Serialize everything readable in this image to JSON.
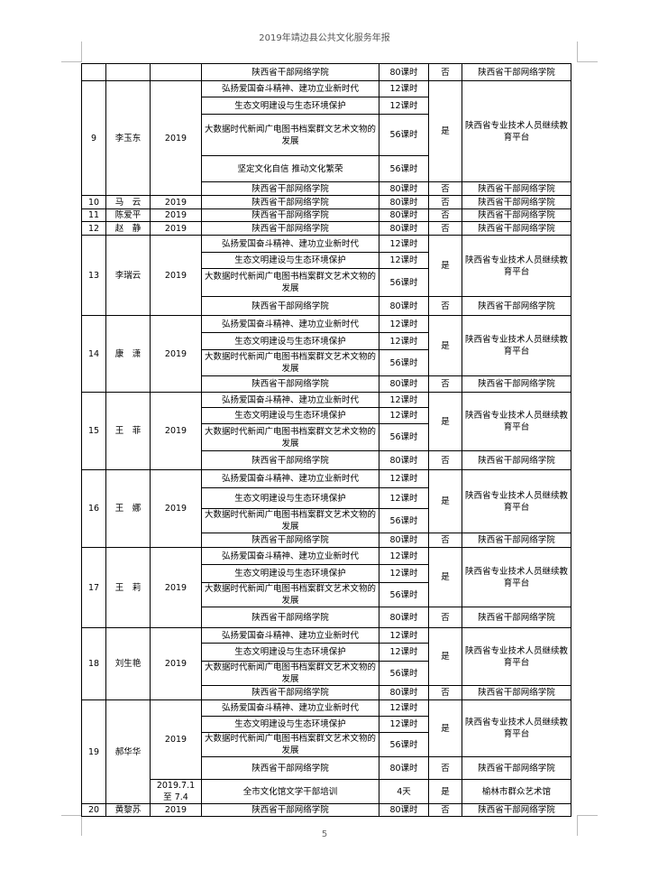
{
  "header": {
    "title": "2019年靖边县公共文化服务年报"
  },
  "footer": {
    "page_number": "5"
  },
  "table": {
    "persons": [
      {
        "no": "",
        "name": "",
        "years": [
          {
            "year": "",
            "span": 1
          }
        ],
        "rows": [
          {
            "course": "陕西省干部网络学院",
            "hours": "80课时"
          }
        ],
        "blocks": [
          {
            "required": "否",
            "platform": "陕西省干部网络学院",
            "span": 1
          }
        ]
      },
      {
        "no": "9",
        "name": "李玉东",
        "years": [
          {
            "year": "2019",
            "span": 5
          }
        ],
        "rows": [
          {
            "course": "弘扬爱国奋斗精神、建功立业新时代",
            "hours": "12课时"
          },
          {
            "course": "生态文明建设与生态环境保护",
            "hours": "12课时"
          },
          {
            "course": "大数据时代新闻广电图书档案群文艺术文物的发展",
            "hours": "56课时"
          },
          {
            "course": "坚定文化自信 推动文化繁荣",
            "hours": "56课时"
          },
          {
            "course": "陕西省干部网络学院",
            "hours": "80课时"
          }
        ],
        "blocks": [
          {
            "required": "是",
            "platform": "陕西省专业技术人员继续教育平台",
            "span": 4
          },
          {
            "required": "否",
            "platform": "陕西省干部网络学院",
            "span": 1
          }
        ]
      },
      {
        "no": "10",
        "name": "马　云",
        "years": [
          {
            "year": "2019",
            "span": 1
          }
        ],
        "rows": [
          {
            "course": "陕西省干部网络学院",
            "hours": "80课时"
          }
        ],
        "blocks": [
          {
            "required": "否",
            "platform": "陕西省干部网络学院",
            "span": 1
          }
        ]
      },
      {
        "no": "11",
        "name": "陈爱平",
        "years": [
          {
            "year": "2019",
            "span": 1
          }
        ],
        "rows": [
          {
            "course": "陕西省干部网络学院",
            "hours": "80课时"
          }
        ],
        "blocks": [
          {
            "required": "否",
            "platform": "陕西省干部网络学院",
            "span": 1
          }
        ]
      },
      {
        "no": "12",
        "name": "赵　静",
        "years": [
          {
            "year": "2019",
            "span": 1
          }
        ],
        "rows": [
          {
            "course": "陕西省干部网络学院",
            "hours": "80课时"
          }
        ],
        "blocks": [
          {
            "required": "否",
            "platform": "陕西省干部网络学院",
            "span": 1
          }
        ]
      },
      {
        "no": "13",
        "name": "李瑞云",
        "years": [
          {
            "year": "2019",
            "span": 4
          }
        ],
        "rows": [
          {
            "course": "弘扬爱国奋斗精神、建功立业新时代",
            "hours": "12课时"
          },
          {
            "course": "生态文明建设与生态环境保护",
            "hours": "12课时"
          },
          {
            "course": "大数据时代新闻广电图书档案群文艺术文物的发展",
            "hours": "56课时"
          },
          {
            "course": "陕西省干部网络学院",
            "hours": "80课时"
          }
        ],
        "blocks": [
          {
            "required": "是",
            "platform": "陕西省专业技术人员继续教育平台",
            "span": 3
          },
          {
            "required": "否",
            "platform": "陕西省干部网络学院",
            "span": 1
          }
        ]
      },
      {
        "no": "14",
        "name": "康　潇",
        "years": [
          {
            "year": "2019",
            "span": 4
          }
        ],
        "rows": [
          {
            "course": "弘扬爱国奋斗精神、建功立业新时代",
            "hours": "12课时"
          },
          {
            "course": "生态文明建设与生态环境保护",
            "hours": "12课时"
          },
          {
            "course": "大数据时代新闻广电图书档案群文艺术文物的发展",
            "hours": "56课时"
          },
          {
            "course": "陕西省干部网络学院",
            "hours": "80课时"
          }
        ],
        "blocks": [
          {
            "required": "是",
            "platform": "陕西省专业技术人员继续教育平台",
            "span": 3
          },
          {
            "required": "否",
            "platform": "陕西省干部网络学院",
            "span": 1
          }
        ]
      },
      {
        "no": "15",
        "name": "王　菲",
        "years": [
          {
            "year": "2019",
            "span": 4
          }
        ],
        "rows": [
          {
            "course": "弘扬爱国奋斗精神、建功立业新时代",
            "hours": "12课时"
          },
          {
            "course": "生态文明建设与生态环境保护",
            "hours": "12课时"
          },
          {
            "course": "大数据时代新闻广电图书档案群文艺术文物的发展",
            "hours": "56课时"
          },
          {
            "course": "陕西省干部网络学院",
            "hours": "80课时"
          }
        ],
        "blocks": [
          {
            "required": "是",
            "platform": "陕西省专业技术人员继续教育平台",
            "span": 3
          },
          {
            "required": "否",
            "platform": "陕西省干部网络学院",
            "span": 1
          }
        ]
      },
      {
        "no": "16",
        "name": "王　娜",
        "years": [
          {
            "year": "2019",
            "span": 4
          }
        ],
        "rows": [
          {
            "course": "弘扬爱国奋斗精神、建功立业新时代",
            "hours": "12课时"
          },
          {
            "course": "生态文明建设与生态环境保护",
            "hours": "12课时"
          },
          {
            "course": "大数据时代新闻广电图书档案群文艺术文物的发展",
            "hours": "56课时"
          },
          {
            "course": "陕西省干部网络学院",
            "hours": "80课时"
          }
        ],
        "blocks": [
          {
            "required": "是",
            "platform": "陕西省专业技术人员继续教育平台",
            "span": 3
          },
          {
            "required": "否",
            "platform": "陕西省干部网络学院",
            "span": 1
          }
        ]
      },
      {
        "no": "17",
        "name": "王　莉",
        "years": [
          {
            "year": "2019",
            "span": 4
          }
        ],
        "rows": [
          {
            "course": "弘扬爱国奋斗精神、建功立业新时代",
            "hours": "12课时"
          },
          {
            "course": "生态文明建设与生态环境保护",
            "hours": "12课时"
          },
          {
            "course": "大数据时代新闻广电图书档案群文艺术文物的发展",
            "hours": "56课时"
          },
          {
            "course": "陕西省干部网络学院",
            "hours": "80课时"
          }
        ],
        "blocks": [
          {
            "required": "是",
            "platform": "陕西省专业技术人员继续教育平台",
            "span": 3
          },
          {
            "required": "否",
            "platform": "陕西省干部网络学院",
            "span": 1
          }
        ]
      },
      {
        "no": "18",
        "name": "刘生艳",
        "years": [
          {
            "year": "2019",
            "span": 4
          }
        ],
        "rows": [
          {
            "course": "弘扬爱国奋斗精神、建功立业新时代",
            "hours": "12课时"
          },
          {
            "course": "生态文明建设与生态环境保护",
            "hours": "12课时"
          },
          {
            "course": "大数据时代新闻广电图书档案群文艺术文物的发展",
            "hours": "56课时"
          },
          {
            "course": "陕西省干部网络学院",
            "hours": "80课时"
          }
        ],
        "blocks": [
          {
            "required": "是",
            "platform": "陕西省专业技术人员继续教育平台",
            "span": 3
          },
          {
            "required": "否",
            "platform": "陕西省干部网络学院",
            "span": 1
          }
        ]
      },
      {
        "no": "19",
        "name": "郝华华",
        "years": [
          {
            "year": "2019",
            "span": 4
          },
          {
            "year": "2019.7.1 至 7.4",
            "span": 1
          }
        ],
        "rows": [
          {
            "course": "弘扬爱国奋斗精神、建功立业新时代",
            "hours": "12课时"
          },
          {
            "course": "生态文明建设与生态环境保护",
            "hours": "12课时"
          },
          {
            "course": "大数据时代新闻广电图书档案群文艺术文物的发展",
            "hours": "56课时"
          },
          {
            "course": "陕西省干部网络学院",
            "hours": "80课时"
          },
          {
            "course": "全市文化馆文学干部培训",
            "hours": "4天"
          }
        ],
        "blocks": [
          {
            "required": "是",
            "platform": "陕西省专业技术人员继续教育平台",
            "span": 3
          },
          {
            "required": "否",
            "platform": "陕西省干部网络学院",
            "span": 1
          },
          {
            "required": "是",
            "platform": "榆林市群众艺术馆",
            "span": 1
          }
        ]
      },
      {
        "no": "20",
        "name": "黄黎苏",
        "years": [
          {
            "year": "2019",
            "span": 1
          }
        ],
        "rows": [
          {
            "course": "陕西省干部网络学院",
            "hours": "80课时"
          }
        ],
        "blocks": [
          {
            "required": "否",
            "platform": "陕西省干部网络学院",
            "span": 1
          }
        ]
      }
    ]
  }
}
